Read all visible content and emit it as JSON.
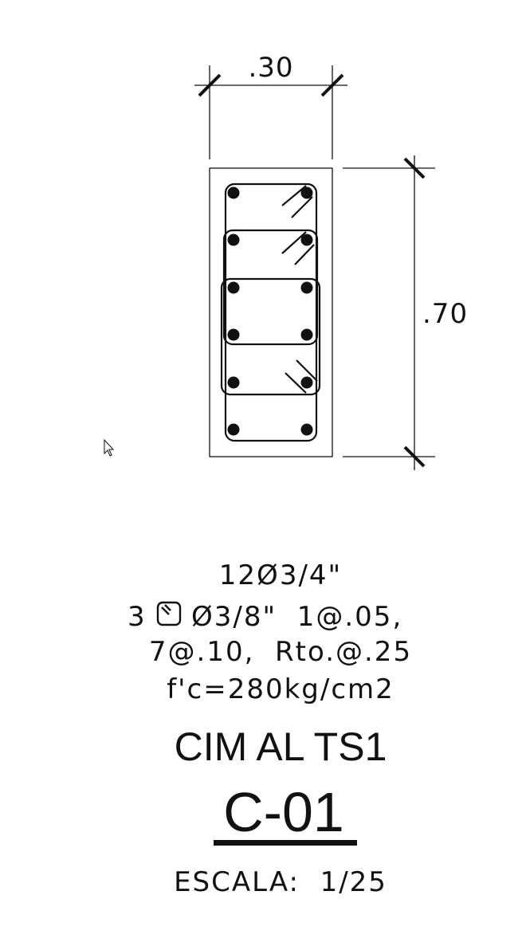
{
  "section": {
    "width_label": ".30",
    "height_label": ".70"
  },
  "specs": {
    "main_bars": "12Ø3/4\"",
    "stirrup_qty": "3",
    "stirrup_spec": "Ø3/8\"  1@.05,",
    "stirrup_spacing": "7@.10,  Rto.@.25",
    "concrete": "f'c=280kg/cm2"
  },
  "title": "CIM AL TS1",
  "code": "C-01",
  "scale": "ESCALA:  1/25",
  "icons": [
    "stirrup-symbol-icon",
    "mouse-cursor-icon"
  ]
}
